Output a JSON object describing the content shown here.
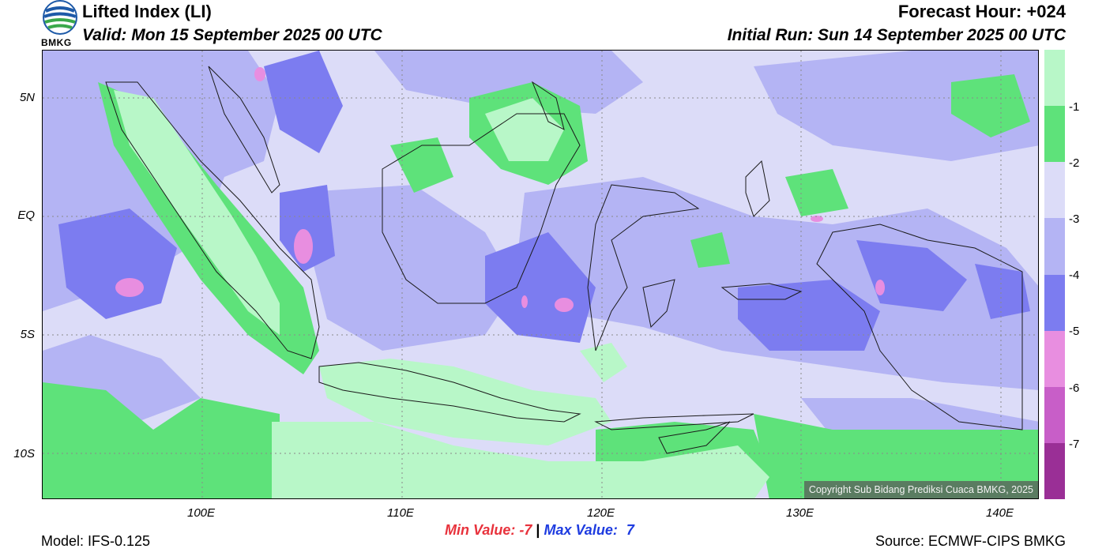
{
  "header": {
    "title": "Lifted Index (LI)",
    "valid": "Valid: Mon 15 September 2025 00 UTC",
    "forecast_hour": "Forecast Hour: +024",
    "initial_run": "Initial Run: Sun 14 September 2025 00 UTC"
  },
  "logo": {
    "text": "BMKG"
  },
  "map": {
    "lat_ticks": [
      "5N",
      "EQ",
      "5S",
      "10S"
    ],
    "lon_ticks": [
      "100E",
      "110E",
      "120E",
      "130E",
      "140E"
    ],
    "copyright": "Copyright Sub Bidang Prediksi Cuaca BMKG, 2025"
  },
  "colorbar": {
    "labels": [
      "-1",
      "-2",
      "-3",
      "-4",
      "-5",
      "-6",
      "-7"
    ],
    "colors": [
      "#b8f7c8",
      "#5ee27a",
      "#dcdcf8",
      "#b4b4f4",
      "#7c7cf0",
      "#e88ee0",
      "#c85ec8",
      "#9a2f96"
    ]
  },
  "footer": {
    "model": "Model: IFS-0.125",
    "min_label": "Min Value:",
    "min_value": "-7",
    "separator": "|",
    "max_label": "Max Value:",
    "max_value": "7",
    "source": "Source: ECMWF-CIPS BMKG"
  }
}
